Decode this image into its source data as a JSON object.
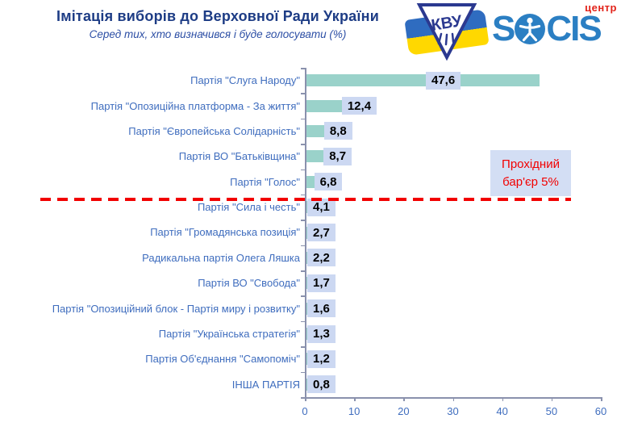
{
  "header": {
    "title": "Імітація виборів до Верховної Ради України",
    "subtitle": "Серед тих, хто визначився і буде голосувати (%)"
  },
  "logos": {
    "kvu_text": "КВУ",
    "socis_s": "S",
    "socis_cis": "CIS",
    "socis_centr": "центр"
  },
  "annotation": {
    "line1": "Прохідний",
    "line2": "бар'єр 5%"
  },
  "chart_data": {
    "type": "bar",
    "orientation": "horizontal",
    "title": "Імітація виборів до Верховної Ради України",
    "subtitle": "Серед тих, хто визначився і буде голосувати (%)",
    "categories": [
      "Партія \"Слуга Народу\"",
      "Партія \"Опозиційна платформа - За життя\"",
      "Партія \"Європейська Солідарність\"",
      "Партія ВО \"Батьківщина\"",
      "Партія \"Голос\"",
      "Партія \"Сила і честь\"",
      "Партія \"Громадянська позиція\"",
      "Радикальна партія Олега Ляшка",
      "Партія ВО \"Свобода\"",
      "Партія \"Опозиційний блок - Партія миру і розвитку\"",
      "Партія \"Українська стратегія\"",
      "Партія Об'єднання \"Самопоміч\"",
      "ІНША ПАРТІЯ"
    ],
    "values": [
      47.6,
      12.4,
      8.8,
      8.7,
      6.8,
      4.1,
      2.7,
      2.2,
      1.7,
      1.6,
      1.3,
      1.2,
      0.8
    ],
    "value_labels": [
      "47,6",
      "12,4",
      "8,8",
      "8,7",
      "6,8",
      "4,1",
      "2,7",
      "2,2",
      "1,7",
      "1,6",
      "1,3",
      "1,2",
      "0,8"
    ],
    "xlabel": "",
    "ylabel": "",
    "xlim": [
      0,
      60
    ],
    "x_ticks": [
      0,
      10,
      20,
      30,
      40,
      50,
      60
    ],
    "grid": false,
    "legend": false,
    "threshold": {
      "value": 5,
      "label": "Прохідний бар'єр 5%",
      "parties_above": 5
    }
  },
  "colors": {
    "bar-color": "#9ad2ca",
    "value-bg": "#ccd8f2",
    "label-blue": "#3f6dbe",
    "title-navy": "#1d3c85",
    "subtitle-blue": "#2d4fa5",
    "red": "#f20000",
    "axis": "#8a91ad",
    "socis-blue": "#2b7fc3",
    "centr-red": "#e2231a",
    "kvu-navy": "#2b3990",
    "flag-blue": "#2f6cc0",
    "flag-yellow": "#ffd800",
    "annotation-bg": "#d3def4"
  }
}
